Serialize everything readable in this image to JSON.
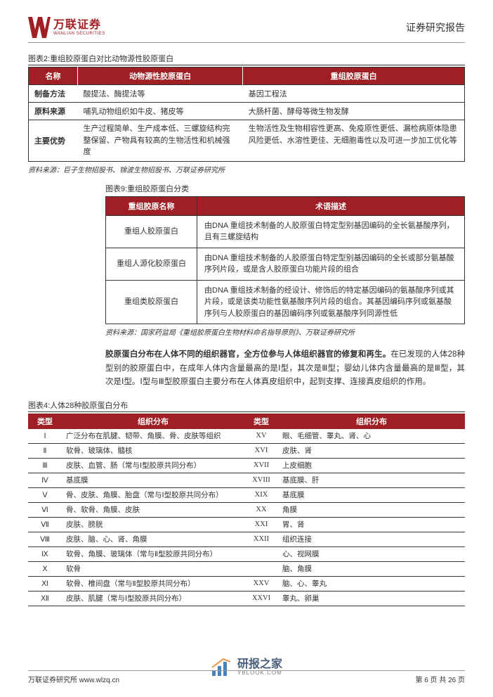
{
  "header": {
    "logo_cn": "万联证券",
    "logo_en": "WANLIAN SECURITIES",
    "doc_type": "证券研究报告",
    "brand_color": "#a01f24"
  },
  "figure2": {
    "title": "图表2:重组胶原蛋白对比动物源性胶原蛋白",
    "headers": [
      "名称",
      "动物源性胶原蛋白",
      "重组胶原蛋白"
    ],
    "rows": [
      {
        "name": "制备方法",
        "a": "酸提法、酶提法等",
        "b": "基因工程法"
      },
      {
        "name": "原料来源",
        "a": "哺乳动物组织如牛皮、猪皮等",
        "b": "大肠杆菌、酵母等微生物发酵"
      },
      {
        "name": "主要优势",
        "a": "生产过程简单、生产成本低、三螺旋结构完整保留、产物具有较高的生物活性和机械强度",
        "b": "生物活性及生物相容性更高、免疫原性更低、漏检病原体隐患风险更低、水溶性更佳、无细胞毒性以及可进一步加工优化等"
      }
    ],
    "source": "资料来源：巨子生物招股书、锦波生物招股书、万联证券研究所"
  },
  "figure9": {
    "title": "图表9:重组胶原蛋白分类",
    "headers": [
      "重组胶原名称",
      "术语描述"
    ],
    "rows": [
      {
        "name": "重组人胶原蛋白",
        "desc": "由DNA 重组技术制备的人胶原蛋白特定型别基因编码的全长氨基酸序列，且有三螺旋结构"
      },
      {
        "name": "重组人源化胶原蛋白",
        "desc": "由DNA 重组技术制备的人胶原蛋白特定型别基因编码的全长或部分氨基酸序列片段，或是含人胶原蛋白功能片段的组合"
      },
      {
        "name": "重组类胶原蛋白",
        "desc": "由DNA 重组技术制备的经设计、修饰后的特定基因编码的氨基酸序列或其片段，或是该类功能性氨基酸序列片段的组合。其基因编码序列或氨基酸序列与人胶原蛋白的基因编码序列或氨基酸序列同源性低"
      }
    ],
    "source": "资料来源：国家药监局《重组胶原蛋白生物材料命名指导原则》、万联证券研究所"
  },
  "paragraph": {
    "bold": "胶原蛋白分布在人体不同的组织器官，全方位参与人体组织器官的修复和再生。",
    "rest": "在已发现的人体28种型别的胶原蛋白中，在成年人体内含量最高的是Ⅰ型，其次是Ⅲ型；婴幼儿体内含量最高的是Ⅲ型，其次是Ⅰ型。Ⅰ型与Ⅲ型胶原蛋白主要分布在人体真皮组织中，起到支撑、连接真皮组织的作用。"
  },
  "figure4": {
    "title": "图表4:人体28种胶原蛋白分布",
    "headers": [
      "类型",
      "组织分布",
      "类型",
      "组织分布"
    ],
    "rows": [
      [
        "Ⅰ",
        "广泛分布在肌腱、韧带、角膜、骨、皮肤等组织",
        "XV",
        "眼、毛细管、睾丸、肾、心"
      ],
      [
        "Ⅱ",
        "软骨、玻璃体、髓核",
        "XVI",
        "皮肤、肾"
      ],
      [
        "Ⅲ",
        "皮肤、血管、肠（常与Ⅰ型胶原共同分布）",
        "XVII",
        "上皮细胞"
      ],
      [
        "Ⅳ",
        "基底膜",
        "XVIII",
        "基底膜、肝"
      ],
      [
        "Ⅴ",
        "骨、皮肤、角膜、胎盘（常与Ⅰ型胶原共同分布）",
        "XIX",
        "基底膜"
      ],
      [
        "Ⅵ",
        "骨、软骨、角膜、皮肤",
        "XX",
        "角膜"
      ],
      [
        "Ⅶ",
        "皮肤、膀胱",
        "XXI",
        "胃、肾"
      ],
      [
        "Ⅷ",
        "皮肤、脑、心、肾、角膜",
        "XXII",
        "组织连接"
      ],
      [
        "Ⅸ",
        "软骨、角膜、玻璃体（常与Ⅱ型胶原共同分布）",
        "",
        "心、视网膜"
      ],
      [
        "Ⅹ",
        "软骨",
        "",
        "脑、角膜"
      ],
      [
        "Ⅺ",
        "软骨、椎间盘（常与Ⅱ型胶原共同分布）",
        "XXV",
        "脑、心、睾丸"
      ],
      [
        "Ⅻ",
        "皮肤、肌腱（常与Ⅰ型胶原共同分布）",
        "XXVI",
        "睾丸、卵巢"
      ]
    ]
  },
  "footer": {
    "left": "万联证券研究所   www.wlzq.cn",
    "right": "第 6 页 共 26 页"
  },
  "watermark": {
    "cn": "研报之家",
    "en": "YBLOOK.COM"
  }
}
